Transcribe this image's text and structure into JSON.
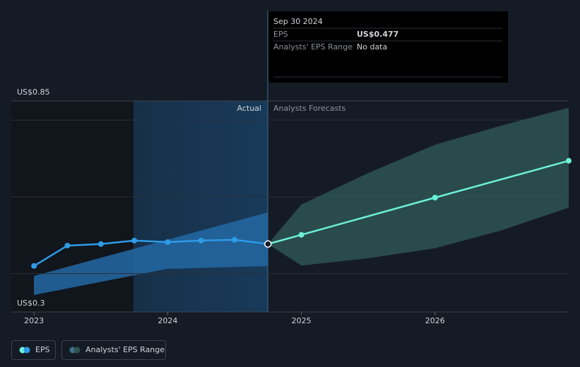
{
  "chart_data": {
    "type": "line",
    "xlim": [
      2022.83,
      2027.0
    ],
    "ylim": [
      0.3,
      0.85
    ],
    "xticks": [
      2023,
      2024,
      2025,
      2026
    ],
    "yticks": [
      {
        "value": 0.3,
        "label": "US$0.3"
      },
      {
        "value": 0.85,
        "label": "US$0.85"
      }
    ],
    "grid_lines": [
      0.4,
      0.6,
      0.8
    ],
    "annotations": {
      "actual": "Actual",
      "forecast": "Analysts Forecasts"
    },
    "series": [
      {
        "name": "EPS",
        "color": "#2d9be8",
        "x": [
          2023.0,
          2023.25,
          2023.5,
          2023.75,
          2024.0,
          2024.25,
          2024.5,
          2024.75
        ],
        "values": [
          0.42,
          0.473,
          0.477,
          0.486,
          0.482,
          0.486,
          0.488,
          0.477
        ]
      }
    ],
    "forecast": {
      "color": "#6cf0d8",
      "x": [
        2024.75,
        2025.0,
        2026.0,
        2027.0
      ],
      "values": [
        0.477,
        0.501,
        0.598,
        0.694
      ]
    },
    "range": {
      "name": "Analysts' EPS Range",
      "color": "#2e5352",
      "x": [
        2024.75,
        2025.0,
        2025.5,
        2026.0,
        2026.5,
        2027.0
      ],
      "high": [
        0.477,
        0.58,
        0.662,
        0.736,
        0.786,
        0.832
      ],
      "low": [
        0.477,
        0.421,
        0.44,
        0.466,
        0.513,
        0.572
      ]
    },
    "tooltip": {
      "date": "Sep 30 2024",
      "rows": [
        {
          "label": "EPS",
          "value": "US$0.477"
        },
        {
          "label": "Analysts' EPS Range",
          "value": "No data"
        }
      ]
    },
    "legend": [
      "EPS",
      "Analysts' EPS Range"
    ]
  }
}
